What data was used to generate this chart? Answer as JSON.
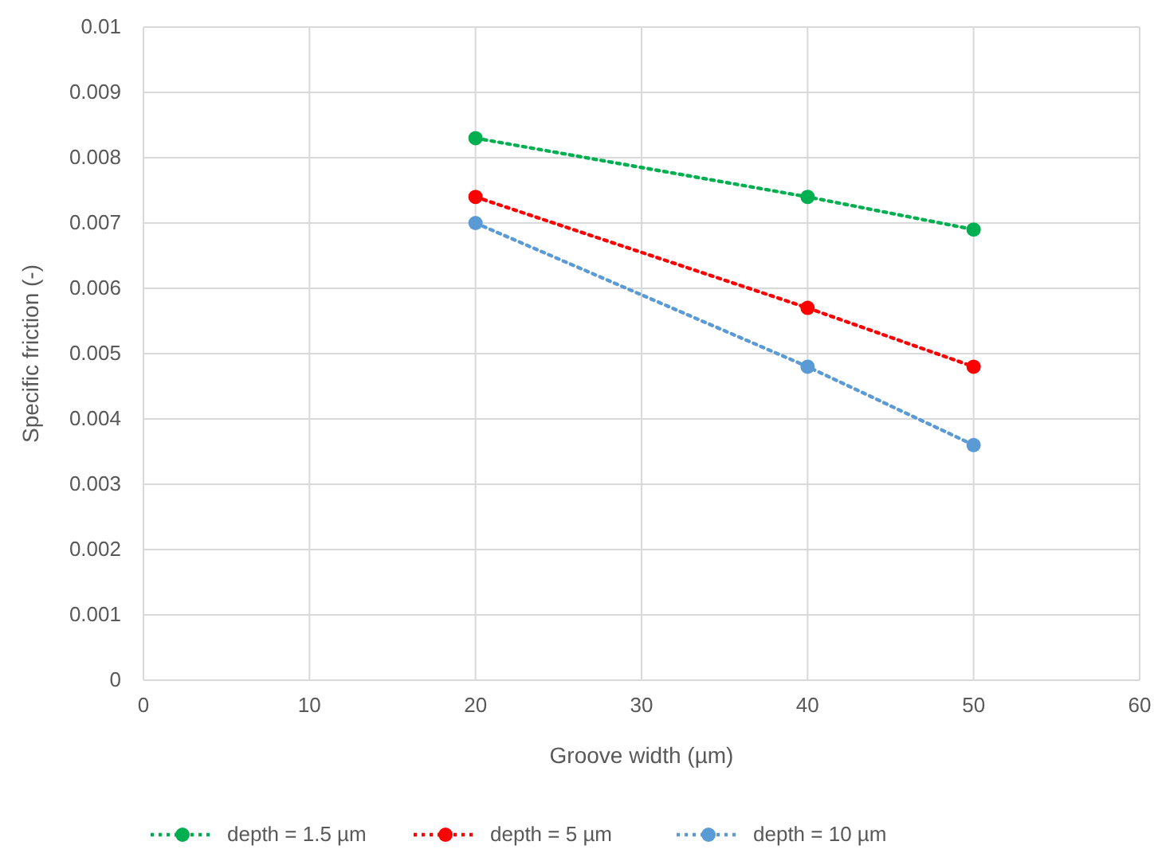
{
  "chart_data": {
    "type": "line",
    "xlabel": "Groove width (µm)",
    "ylabel": "Specific friction (-)",
    "x": [
      20,
      40,
      50
    ],
    "series": [
      {
        "name": "depth = 1.5 µm",
        "color": "#00b050",
        "values": [
          0.0083,
          0.0074,
          0.0069
        ]
      },
      {
        "name": "depth = 5 µm",
        "color": "#ff0000",
        "values": [
          0.0074,
          0.0057,
          0.0048
        ]
      },
      {
        "name": "depth = 10 µm",
        "color": "#5b9bd5",
        "values": [
          0.007,
          0.0048,
          0.0036
        ]
      }
    ],
    "xlim": [
      0,
      60
    ],
    "xticks": [
      0,
      10,
      20,
      30,
      40,
      50,
      60
    ],
    "ylim": [
      0,
      0.01
    ],
    "yticks": [
      0,
      0.001,
      0.002,
      0.003,
      0.004,
      0.005,
      0.006,
      0.007,
      0.008,
      0.009,
      0.01
    ],
    "grid": true,
    "legend": "bottom",
    "marker": "circle",
    "line_style": "dotted"
  }
}
